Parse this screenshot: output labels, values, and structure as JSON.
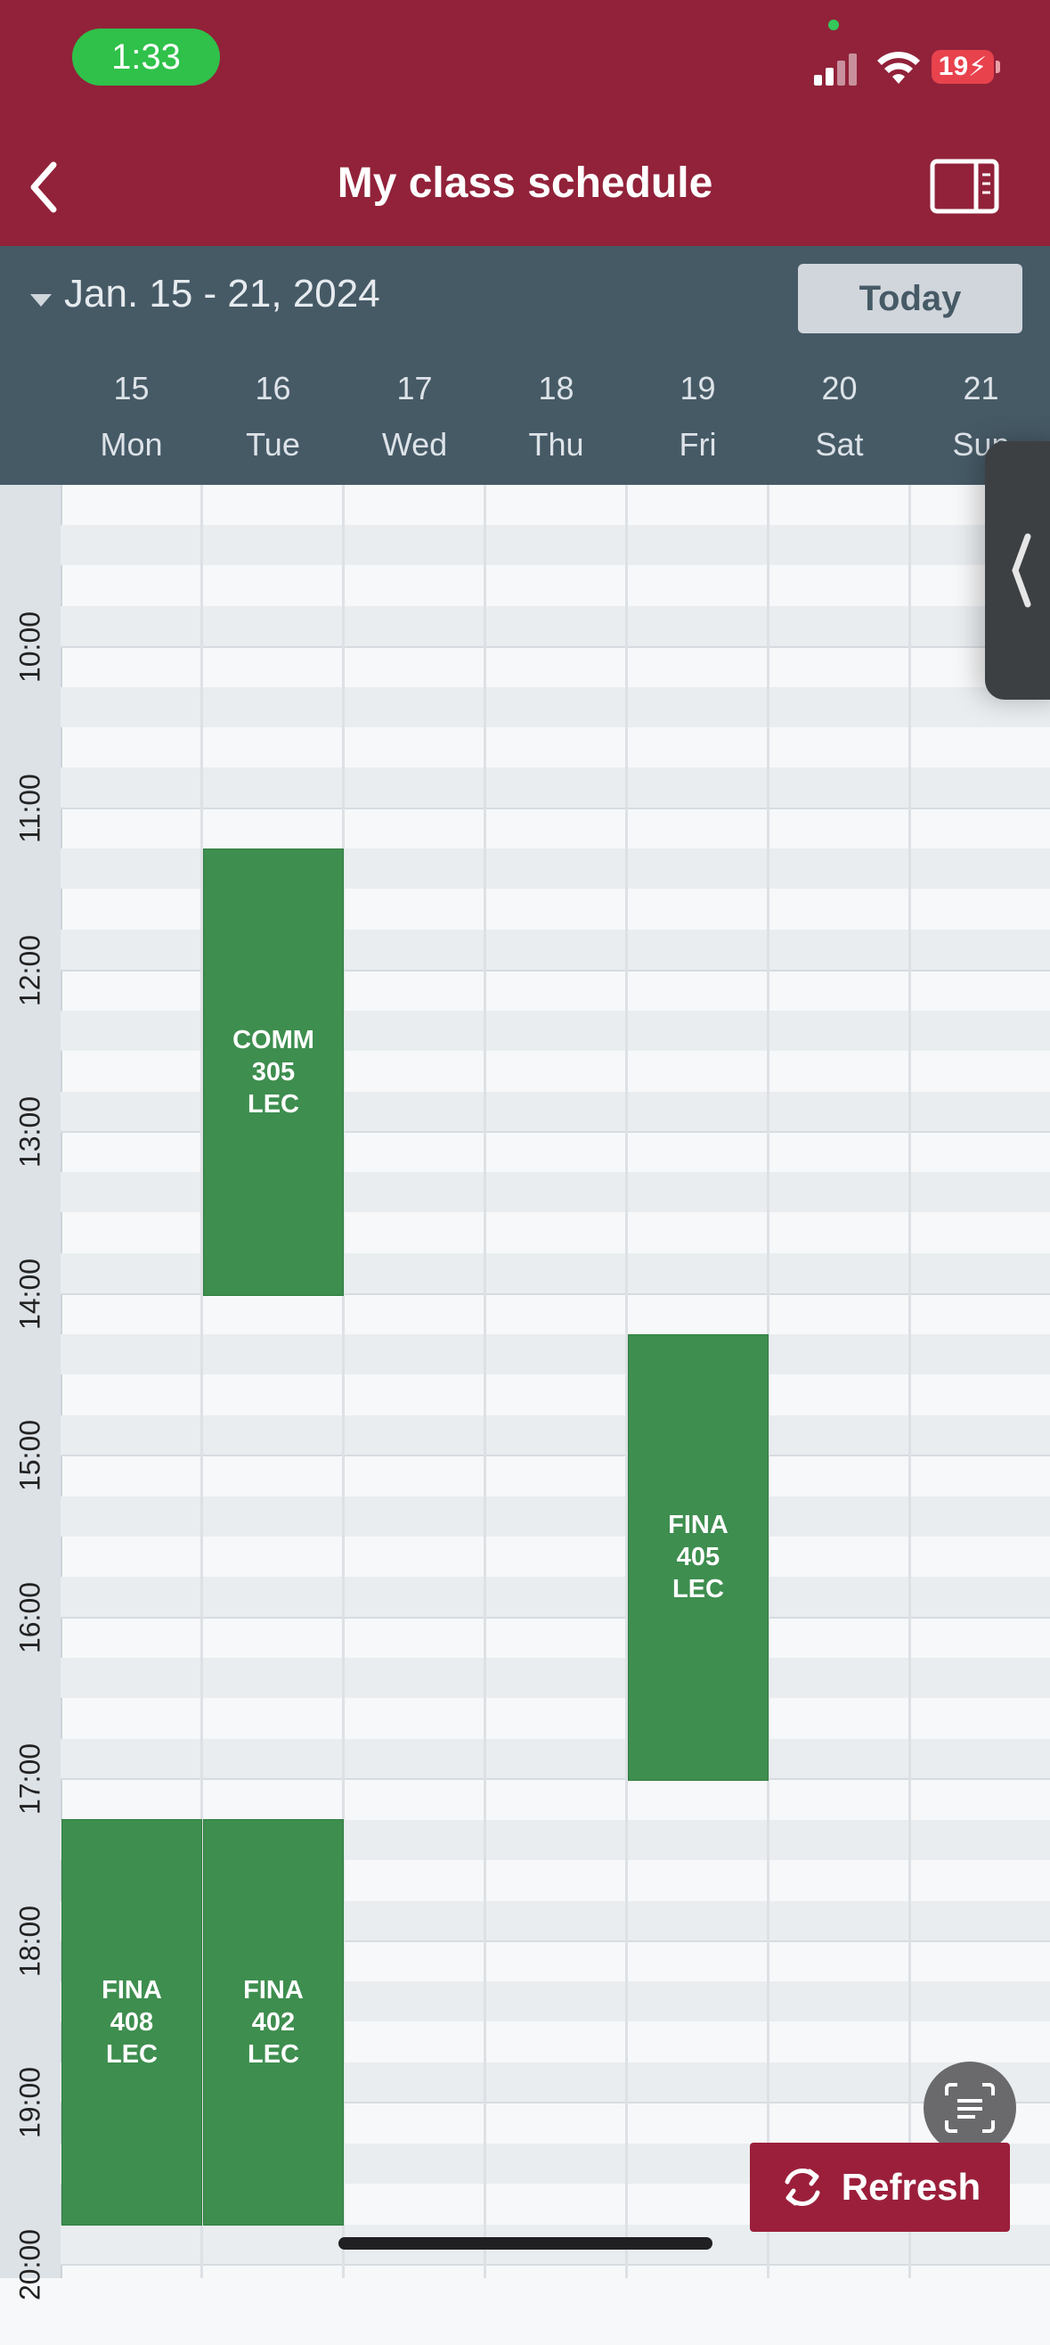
{
  "status_bar": {
    "time": "1:33",
    "battery": "19"
  },
  "header": {
    "title": "My class schedule"
  },
  "week": {
    "range_label": "Jan. 15 - 21, 2024",
    "today_label": "Today",
    "days": [
      {
        "num": "15",
        "name": "Mon"
      },
      {
        "num": "16",
        "name": "Tue"
      },
      {
        "num": "17",
        "name": "Wed"
      },
      {
        "num": "18",
        "name": "Thu"
      },
      {
        "num": "19",
        "name": "Fri"
      },
      {
        "num": "20",
        "name": "Sat"
      },
      {
        "num": "21",
        "name": "Sun"
      }
    ]
  },
  "hours": [
    "10:00",
    "11:00",
    "12:00",
    "13:00",
    "14:00",
    "15:00",
    "16:00",
    "17:00",
    "18:00",
    "19:00",
    "20:00"
  ],
  "events": [
    {
      "day": "Tue",
      "start": "11:45",
      "end": "14:30",
      "lines": [
        "COMM",
        "305",
        "LEC"
      ]
    },
    {
      "day": "Fri",
      "start": "14:45",
      "end": "17:30",
      "lines": [
        "FINA",
        "405",
        "LEC"
      ]
    },
    {
      "day": "Mon",
      "start": "17:45",
      "end": "20:15",
      "lines": [
        "FINA",
        "408",
        "LEC"
      ]
    },
    {
      "day": "Tue",
      "start": "17:45",
      "end": "20:15",
      "lines": [
        "FINA",
        "402",
        "LEC"
      ]
    }
  ],
  "actions": {
    "refresh_label": "Refresh"
  },
  "colors": {
    "header": "#91223a",
    "weekbar": "#465a66",
    "event": "#3e8e4f",
    "refresh": "#9b1f3b"
  }
}
